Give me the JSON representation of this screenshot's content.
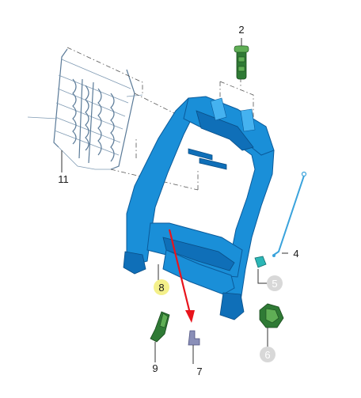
{
  "callouts": [
    {
      "id": "2",
      "label": "2",
      "style": "plain"
    },
    {
      "id": "4",
      "label": "4",
      "style": "plain"
    },
    {
      "id": "5",
      "label": "5",
      "style": "grey-circle"
    },
    {
      "id": "6",
      "label": "6",
      "style": "grey-circle"
    },
    {
      "id": "7",
      "label": "7",
      "style": "plain"
    },
    {
      "id": "8",
      "label": "8",
      "style": "yellow-circle"
    },
    {
      "id": "9",
      "label": "9",
      "style": "plain"
    },
    {
      "id": "11",
      "label": "11",
      "style": "plain"
    }
  ],
  "colors": {
    "frame": "#1a8fd8",
    "frame_dark": "#0f6fb8",
    "wire_mat": "#5a7a98",
    "green_parts": "#2f7a35",
    "highlight_arrow": "#e8141c",
    "yellow_badge": "#f4f08a",
    "grey_badge": "#d8d8d8"
  },
  "parts": {
    "p2": "headrest-guide",
    "p4": "release-rod",
    "p5": "clip",
    "p6": "recliner-cap",
    "p7": "bracket",
    "p8": "seatback-frame",
    "p9": "trim-fastener",
    "p11": "spring-mat"
  }
}
